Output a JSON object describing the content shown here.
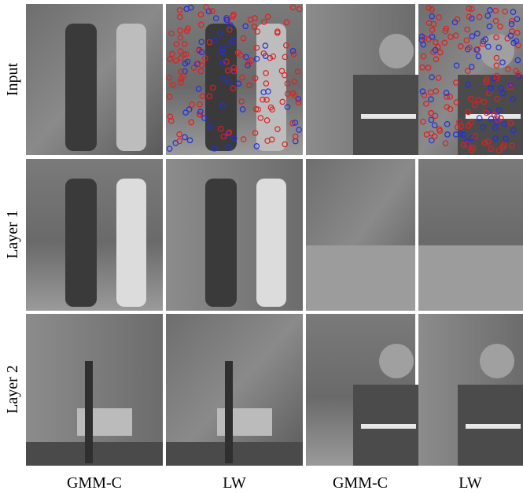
{
  "figure": {
    "row_labels": [
      "Input",
      "Layer 1",
      "Layer 2"
    ],
    "column_labels": [
      "GMM-C",
      "LW",
      "GMM-C",
      "LW"
    ]
  }
}
